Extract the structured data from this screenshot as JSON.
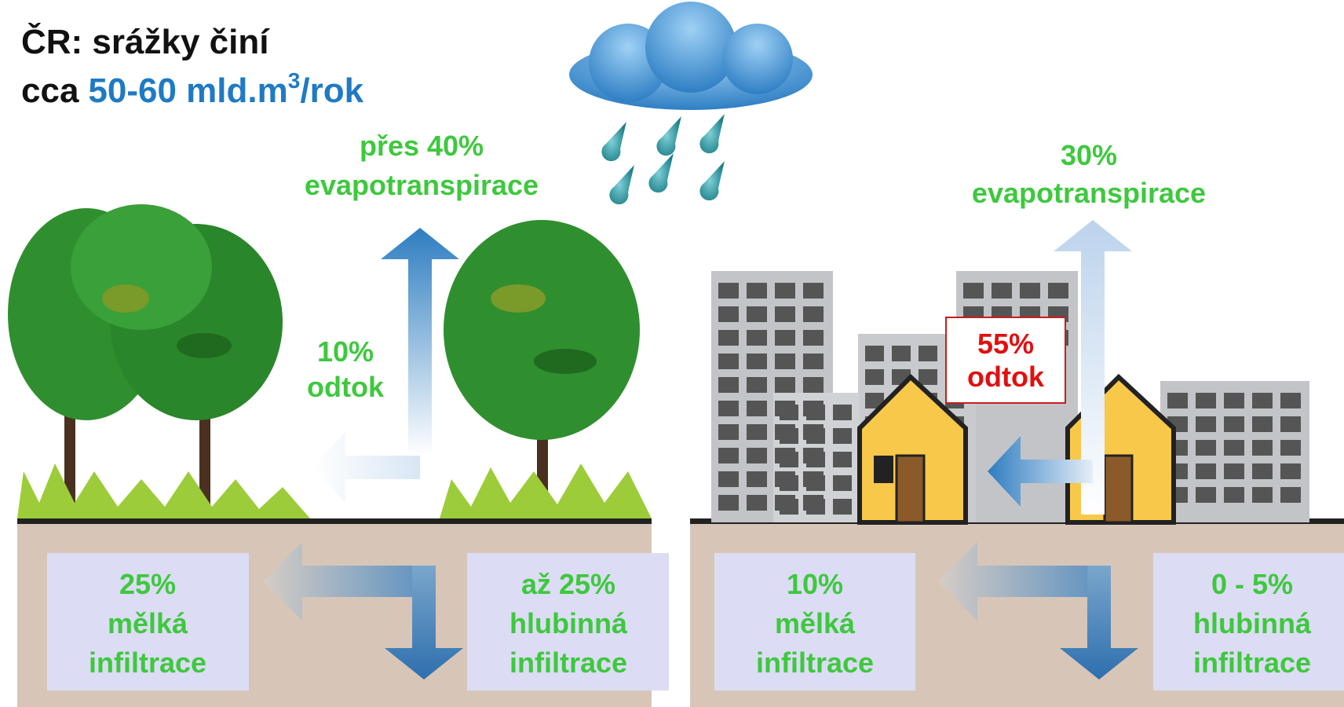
{
  "title": {
    "line1": "ČR: srážky činí",
    "prefix": "cca",
    "amount": "50-60 mld.m",
    "superscript": "3",
    "unit": "/rok"
  },
  "forest": {
    "evapotranspiration": [
      "přes 40%",
      "evapotranspirace"
    ],
    "runoff": [
      "10%",
      "odtok"
    ],
    "shallow_infiltration": [
      "25%",
      "mělká",
      "infiltrace"
    ],
    "deep_infiltration": [
      "až 25%",
      "hlubinná",
      "infiltrace"
    ]
  },
  "city": {
    "evapotranspiration": [
      "30%",
      "evapotranspirace"
    ],
    "runoff": [
      "55%",
      "odtok"
    ],
    "shallow_infiltration": [
      "10%",
      "mělká",
      "infiltrace"
    ],
    "deep_infiltration": [
      "0 - 5%",
      "hlubinná",
      "infiltrace"
    ]
  }
}
